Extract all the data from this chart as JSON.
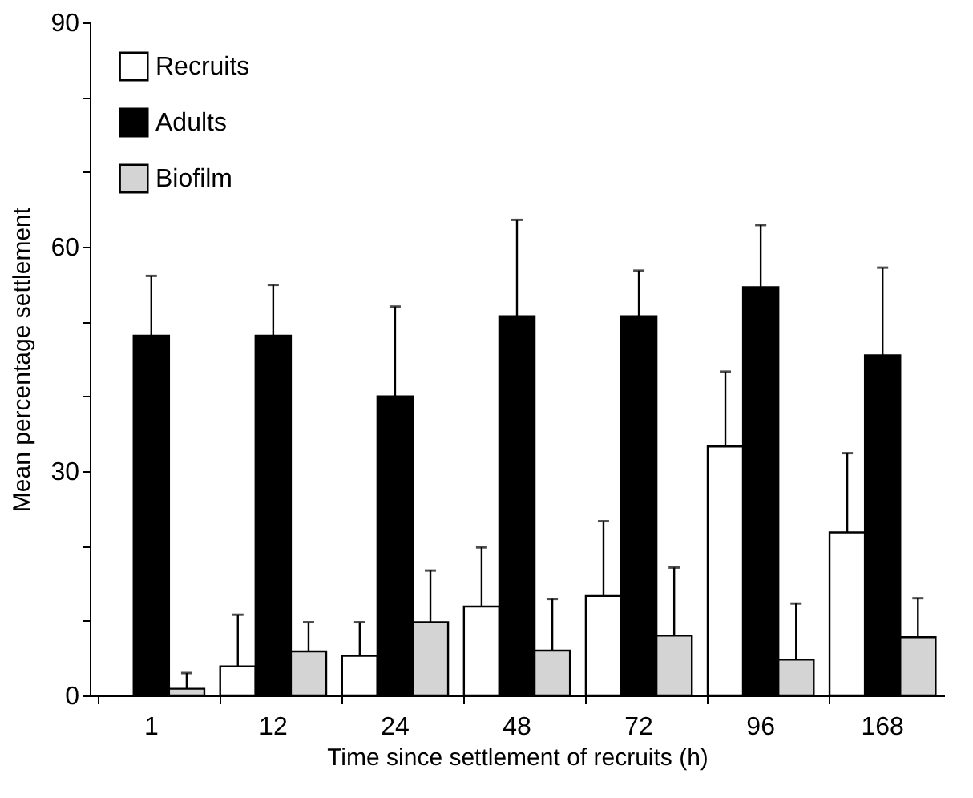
{
  "chart_data": {
    "type": "bar",
    "xlabel": "Time since settlement of recruits (h)",
    "ylabel": "Mean percentage settlement",
    "categories": [
      "1",
      "12",
      "24",
      "48",
      "72",
      "96",
      "168"
    ],
    "series": [
      {
        "name": "Recruits",
        "color": "#ffffff",
        "values": [
          null,
          3.9,
          5.3,
          11.9,
          13.3,
          33.3,
          21.8
        ],
        "errors": [
          null,
          [
            3.9,
            10.8
          ],
          [
            5.3,
            9.8
          ],
          [
            11.9,
            19.8
          ],
          [
            13.3,
            23.3
          ],
          [
            33.3,
            43.3
          ],
          [
            21.8,
            32.4
          ]
        ]
      },
      {
        "name": "Adults",
        "color": "#000000",
        "values": [
          48.1,
          48.1,
          40.0,
          50.7,
          50.7,
          54.6,
          45.5
        ],
        "errors": [
          [
            48.1,
            56.1
          ],
          [
            48.1,
            54.9
          ],
          [
            40.0,
            52.0
          ],
          [
            50.7,
            63.6
          ],
          [
            50.7,
            56.8
          ],
          [
            54.6,
            62.9
          ],
          [
            45.5,
            57.2
          ]
        ]
      },
      {
        "name": "Biofilm",
        "color": "#d4d4d4",
        "values": [
          0.9,
          5.9,
          9.8,
          6.0,
          8.0,
          4.8,
          7.8
        ],
        "errors": [
          [
            0.9,
            3.0
          ],
          [
            5.9,
            9.8
          ],
          [
            9.8,
            16.7
          ],
          [
            6.0,
            12.9
          ],
          [
            8.0,
            17.1
          ],
          [
            4.8,
            12.3
          ],
          [
            7.8,
            13.0
          ]
        ]
      }
    ],
    "ylim": [
      0,
      90
    ],
    "yticks": [
      0,
      {
        "value": 10,
        "label": null
      },
      {
        "value": 20,
        "label": null
      },
      30,
      {
        "value": 40,
        "label": null
      },
      {
        "value": 50,
        "label": null
      },
      60,
      {
        "value": 70,
        "label": null
      },
      {
        "value": 80,
        "label": null
      },
      90
    ],
    "grid": false,
    "legend": "top left"
  }
}
